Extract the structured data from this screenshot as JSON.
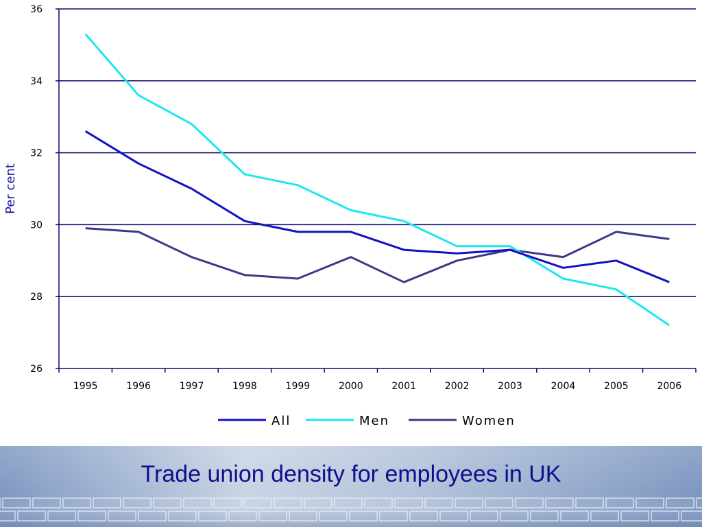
{
  "footer": {
    "title": "Trade union density for employees in UK"
  },
  "chart_data": {
    "type": "line",
    "title": "",
    "xlabel": "",
    "ylabel": "Per cent",
    "categories": [
      "1995",
      "1996",
      "1997",
      "1998",
      "1999",
      "2000",
      "2001",
      "2002",
      "2003",
      "2004",
      "2005",
      "2006"
    ],
    "ylim": [
      26,
      36
    ],
    "yticks": [
      26,
      28,
      30,
      32,
      34,
      36
    ],
    "grid": "horizontal",
    "legend_position": "bottom",
    "series": [
      {
        "name": "All",
        "color": "#1212c4",
        "values": [
          32.6,
          31.7,
          31.0,
          30.1,
          29.8,
          29.8,
          29.3,
          29.2,
          29.3,
          28.8,
          29.0,
          28.4
        ]
      },
      {
        "name": "Men",
        "color": "#1ee6f0",
        "values": [
          35.3,
          33.6,
          32.8,
          31.4,
          31.1,
          30.4,
          30.1,
          29.4,
          29.4,
          28.5,
          28.2,
          27.2
        ]
      },
      {
        "name": "Women",
        "color": "#3a3a8c",
        "values": [
          29.9,
          29.8,
          29.1,
          28.6,
          28.5,
          29.1,
          28.4,
          29.0,
          29.3,
          29.1,
          29.8,
          29.6
        ]
      }
    ]
  }
}
